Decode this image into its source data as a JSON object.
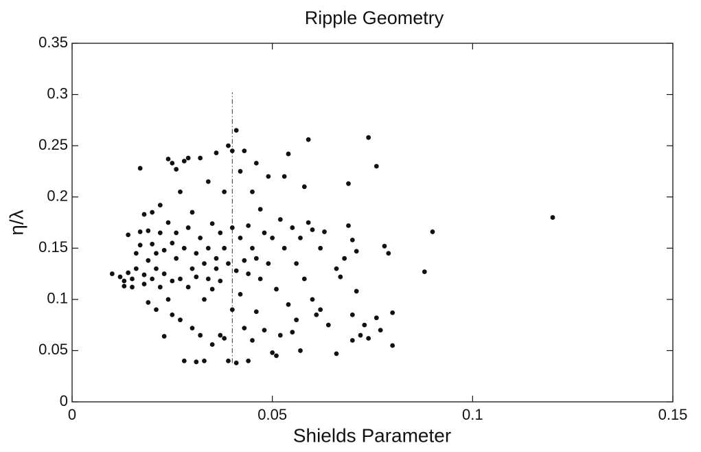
{
  "chart_data": {
    "type": "scatter",
    "title": "Ripple Geometry",
    "x_label": "Shields Parameter",
    "y_label": "η/λ",
    "xlim": [
      0,
      0.15
    ],
    "ylim": [
      0,
      0.35
    ],
    "xticks": [
      0,
      0.05,
      0.1,
      0.15
    ],
    "yticks": [
      0,
      0.05,
      0.1,
      0.15,
      0.2,
      0.25,
      0.3,
      0.35
    ],
    "grid": false,
    "color": "#111111",
    "reference_line": {
      "x": 0.04,
      "y": [
        0.038,
        0.302
      ]
    },
    "series": [
      {
        "x": [
          0.01,
          0.012,
          0.013,
          0.013,
          0.014,
          0.014,
          0.015,
          0.015,
          0.016,
          0.016,
          0.017,
          0.017,
          0.017,
          0.018,
          0.018,
          0.018,
          0.019,
          0.019,
          0.019,
          0.02,
          0.02,
          0.02,
          0.021,
          0.021,
          0.021,
          0.022,
          0.022,
          0.022,
          0.023,
          0.023,
          0.023,
          0.024,
          0.024,
          0.024,
          0.025,
          0.025,
          0.025,
          0.025,
          0.026,
          0.026,
          0.026,
          0.027,
          0.027,
          0.027,
          0.028,
          0.028,
          0.028,
          0.029,
          0.029,
          0.029,
          0.03,
          0.03,
          0.03,
          0.031,
          0.031,
          0.031,
          0.032,
          0.032,
          0.032,
          0.033,
          0.033,
          0.033,
          0.034,
          0.034,
          0.034,
          0.035,
          0.035,
          0.035,
          0.036,
          0.036,
          0.036,
          0.037,
          0.037,
          0.037,
          0.038,
          0.038,
          0.038,
          0.039,
          0.039,
          0.039,
          0.04,
          0.04,
          0.04,
          0.041,
          0.041,
          0.041,
          0.042,
          0.042,
          0.042,
          0.043,
          0.043,
          0.043,
          0.044,
          0.044,
          0.044,
          0.045,
          0.045,
          0.045,
          0.046,
          0.046,
          0.046,
          0.047,
          0.047,
          0.048,
          0.048,
          0.049,
          0.049,
          0.05,
          0.05,
          0.051,
          0.051,
          0.052,
          0.052,
          0.053,
          0.053,
          0.054,
          0.054,
          0.055,
          0.055,
          0.056,
          0.056,
          0.057,
          0.057,
          0.058,
          0.058,
          0.059,
          0.059,
          0.06,
          0.06,
          0.061,
          0.062,
          0.062,
          0.063,
          0.064,
          0.066,
          0.066,
          0.067,
          0.068,
          0.069,
          0.069,
          0.07,
          0.07,
          0.07,
          0.071,
          0.071,
          0.072,
          0.073,
          0.074,
          0.074,
          0.076,
          0.076,
          0.077,
          0.078,
          0.079,
          0.08,
          0.08,
          0.088,
          0.09,
          0.12
        ],
        "y": [
          0.125,
          0.122,
          0.118,
          0.113,
          0.126,
          0.163,
          0.12,
          0.112,
          0.13,
          0.145,
          0.166,
          0.228,
          0.153,
          0.115,
          0.183,
          0.124,
          0.138,
          0.097,
          0.167,
          0.12,
          0.154,
          0.185,
          0.09,
          0.13,
          0.145,
          0.112,
          0.165,
          0.192,
          0.064,
          0.125,
          0.148,
          0.237,
          0.1,
          0.175,
          0.233,
          0.085,
          0.155,
          0.118,
          0.227,
          0.14,
          0.165,
          0.08,
          0.12,
          0.205,
          0.235,
          0.15,
          0.04,
          0.238,
          0.112,
          0.17,
          0.13,
          0.072,
          0.185,
          0.039,
          0.145,
          0.122,
          0.065,
          0.16,
          0.238,
          0.1,
          0.135,
          0.04,
          0.215,
          0.12,
          0.15,
          0.174,
          0.11,
          0.056,
          0.14,
          0.13,
          0.243,
          0.065,
          0.165,
          0.118,
          0.062,
          0.205,
          0.15,
          0.25,
          0.04,
          0.135,
          0.245,
          0.17,
          0.09,
          0.265,
          0.038,
          0.128,
          0.225,
          0.16,
          0.105,
          0.245,
          0.138,
          0.072,
          0.04,
          0.172,
          0.125,
          0.205,
          0.15,
          0.06,
          0.233,
          0.14,
          0.088,
          0.188,
          0.12,
          0.165,
          0.07,
          0.22,
          0.135,
          0.048,
          0.16,
          0.045,
          0.11,
          0.178,
          0.065,
          0.22,
          0.15,
          0.242,
          0.095,
          0.17,
          0.068,
          0.135,
          0.08,
          0.16,
          0.05,
          0.21,
          0.12,
          0.256,
          0.175,
          0.168,
          0.1,
          0.085,
          0.15,
          0.09,
          0.166,
          0.075,
          0.047,
          0.13,
          0.122,
          0.14,
          0.213,
          0.172,
          0.158,
          0.085,
          0.06,
          0.108,
          0.147,
          0.065,
          0.075,
          0.258,
          0.062,
          0.23,
          0.082,
          0.07,
          0.152,
          0.145,
          0.087,
          0.055,
          0.127,
          0.166,
          0.18
        ]
      }
    ]
  }
}
